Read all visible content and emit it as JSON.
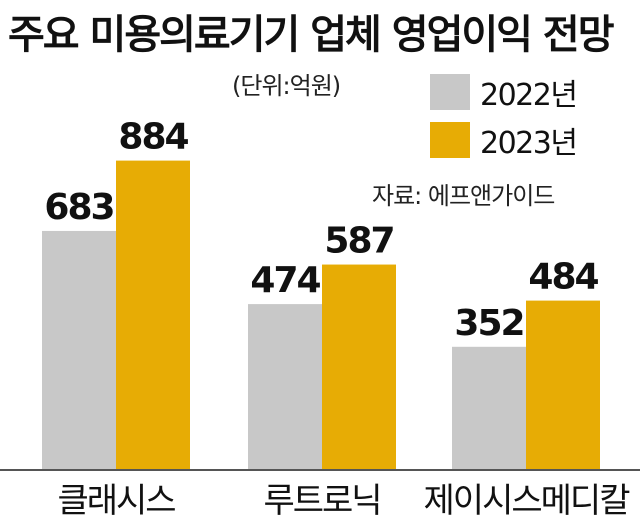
{
  "title": "주요 미용의료기기 업체 영업이익 전망",
  "unit": "(단위:억원)",
  "source": "자료: 에프앤가이드",
  "colors": {
    "series_2022": "#c8c8c8",
    "series_2023": "#e7ac05",
    "baseline": "#555555"
  },
  "chart_data": {
    "type": "bar",
    "categories": [
      "클래시스",
      "루트로닉",
      "제이시스메디칼"
    ],
    "series": [
      {
        "name": "2022년",
        "values": [
          683,
          474,
          352
        ]
      },
      {
        "name": "2023년",
        "values": [
          884,
          587,
          484
        ]
      }
    ],
    "legend_position": "top-right",
    "grid": false
  }
}
